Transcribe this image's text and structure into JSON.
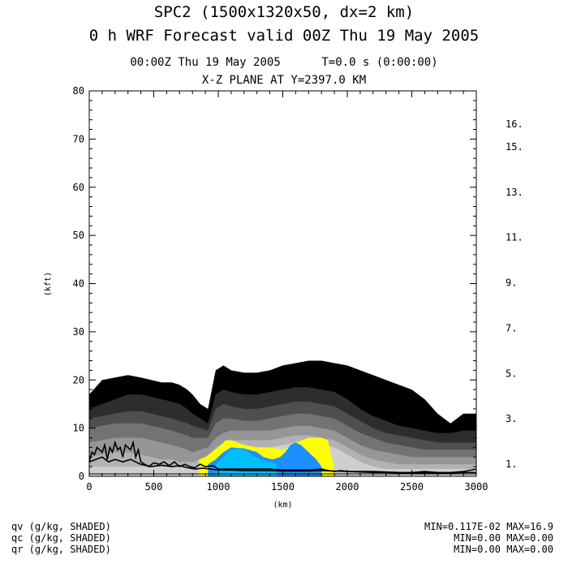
{
  "header": {
    "title_line1": "SPC2 (1500x1320x50, dx=2 km)",
    "title_line2": "0 h WRF Forecast valid 00Z Thu 19 May 2005",
    "time_line": "00:00Z Thu 19 May 2005      T=0.0 s (0:00:00)",
    "plane_line": "X-Z PLANE AT Y=2397.0 KM"
  },
  "chart_data": {
    "type": "area",
    "title": "X-Z PLANE AT Y=2397.0 KM",
    "xlabel": "(km)",
    "ylabel": "(kft)",
    "xlim": [
      0,
      3000
    ],
    "ylim": [
      0,
      80
    ],
    "xticks": [
      0,
      500,
      1000,
      1500,
      2000,
      2500,
      3000
    ],
    "yticks": [
      0,
      10,
      20,
      30,
      40,
      50,
      60,
      70,
      80
    ],
    "grid": false,
    "colorbar": {
      "tick_labels": [
        "1.",
        "3.",
        "5.",
        "7.",
        "9.",
        "11.",
        "13.",
        "15.",
        "16."
      ],
      "tick_values": [
        1,
        3,
        5,
        7,
        9,
        11,
        13,
        15,
        16
      ],
      "levels": [
        1,
        2,
        3,
        4,
        5,
        6,
        7,
        8,
        9,
        10,
        11,
        12,
        13,
        14,
        15,
        16
      ],
      "colors": [
        "#000000",
        "#2d2d2d",
        "#4f4f4f",
        "#737373",
        "#969696",
        "#b2b2b2",
        "#cfcfcf",
        "#ffff00",
        "#1e8fff",
        "#00bfff",
        "#00eeff",
        "#aaffff",
        "#1fbf1f",
        "#33dd33",
        "#7fff33",
        "#80e080"
      ]
    },
    "qv_layers": [
      {
        "level": 1,
        "color": "#000000",
        "x": [
          0,
          100,
          200,
          300,
          400,
          480,
          560,
          640,
          700,
          760,
          800,
          860,
          920,
          980,
          1040,
          1100,
          1200,
          1300,
          1400,
          1500,
          1600,
          1700,
          1800,
          1900,
          2000,
          2100,
          2200,
          2300,
          2400,
          2500,
          2600,
          2700,
          2800,
          2900,
          3000
        ],
        "y": [
          17,
          20,
          20.5,
          21,
          20.5,
          20,
          19.5,
          19.5,
          19,
          18,
          17,
          15,
          14,
          22,
          23,
          22,
          21.5,
          21.5,
          22,
          23,
          23.5,
          24,
          24,
          23.5,
          23,
          22,
          21,
          20,
          19,
          18,
          16,
          13,
          11,
          13,
          13
        ]
      },
      {
        "level": 2,
        "color": "#2d2d2d",
        "x": [
          0,
          100,
          200,
          300,
          400,
          480,
          560,
          640,
          700,
          760,
          800,
          860,
          920,
          980,
          1040,
          1100,
          1200,
          1300,
          1400,
          1500,
          1600,
          1700,
          1800,
          1900,
          2000,
          2100,
          2200,
          2300,
          2400,
          2500,
          2600,
          2700,
          2800,
          2900,
          3000
        ],
        "y": [
          14,
          15,
          16,
          17,
          17,
          16.5,
          16,
          15.5,
          15,
          14,
          13,
          12,
          11,
          17,
          18,
          17.5,
          17,
          17,
          17.5,
          18,
          18.5,
          18.5,
          18,
          17.5,
          16,
          14,
          12.5,
          11.5,
          10.5,
          10,
          9.5,
          9,
          9,
          9.5,
          9.5
        ]
      },
      {
        "level": 3,
        "color": "#4f4f4f",
        "x": [
          0,
          100,
          200,
          300,
          400,
          480,
          560,
          640,
          700,
          760,
          800,
          860,
          920,
          980,
          1040,
          1100,
          1200,
          1300,
          1400,
          1500,
          1600,
          1700,
          1800,
          1900,
          2000,
          2100,
          2200,
          2300,
          2400,
          2500,
          2600,
          2700,
          2800,
          2900,
          3000
        ],
        "y": [
          12,
          12.5,
          13,
          13.5,
          13.5,
          13,
          12.5,
          12,
          11.5,
          11,
          10.5,
          10,
          9.5,
          14,
          15,
          14.5,
          14,
          14,
          14.5,
          15,
          15.5,
          15.5,
          15,
          14.5,
          13,
          11.5,
          10,
          9,
          8.5,
          8,
          7.5,
          7,
          7,
          7,
          7
        ]
      },
      {
        "level": 4,
        "color": "#737373",
        "x": [
          0,
          100,
          200,
          300,
          400,
          480,
          560,
          640,
          700,
          760,
          800,
          860,
          920,
          980,
          1040,
          1100,
          1200,
          1300,
          1400,
          1500,
          1600,
          1700,
          1800,
          1900,
          2000,
          2100,
          2200,
          2300,
          2400,
          2500,
          2600,
          2700,
          2800,
          2900,
          3000
        ],
        "y": [
          10,
          10.5,
          11,
          11,
          11,
          10.5,
          10,
          9.5,
          9,
          8.5,
          8,
          8,
          8,
          11,
          12,
          12,
          11.5,
          11.5,
          12,
          12.5,
          13,
          13,
          12.5,
          12,
          10.5,
          9,
          8,
          7,
          6.5,
          6,
          5.5,
          5.5,
          5.5,
          5.5,
          5.5
        ]
      },
      {
        "level": 5,
        "color": "#969696",
        "x": [
          0,
          100,
          200,
          300,
          400,
          480,
          560,
          640,
          700,
          760,
          800,
          860,
          920,
          980,
          1040,
          1100,
          1200,
          1300,
          1400,
          1500,
          1600,
          1700,
          1800,
          1900,
          2000,
          2100,
          2200,
          2300,
          2400,
          2500,
          2600,
          2700,
          2800,
          2900,
          3000
        ],
        "y": [
          7,
          7.5,
          8,
          8,
          8,
          7.5,
          7,
          6.5,
          6,
          5.5,
          5,
          5.5,
          6,
          8,
          9,
          9.5,
          9.5,
          9.5,
          9.5,
          10,
          10.5,
          10.5,
          10,
          9.5,
          8,
          6.5,
          5.5,
          5,
          4.5,
          4,
          4,
          4,
          4,
          4,
          4
        ]
      },
      {
        "level": 6,
        "color": "#b2b2b2",
        "x": [
          0,
          100,
          200,
          300,
          400,
          480,
          560,
          640,
          700,
          760,
          800,
          860,
          920,
          980,
          1040,
          1100,
          1200,
          1300,
          1400,
          1500,
          1600,
          1700,
          1800,
          1900,
          2000,
          2100,
          2200,
          2300,
          2400,
          2500,
          2600,
          2700,
          2800,
          2900,
          3000
        ],
        "y": [
          4,
          4.5,
          5,
          5,
          4.5,
          4,
          3.5,
          3.5,
          3,
          3,
          3,
          3.5,
          4,
          6,
          7,
          7.5,
          7.5,
          7.5,
          7.5,
          8,
          8.5,
          8.5,
          8,
          7.5,
          6,
          4.5,
          3.5,
          3,
          2.5,
          2.5,
          2.5,
          2.5,
          2.5,
          2.5,
          2.5
        ]
      },
      {
        "level": 7,
        "color": "#cfcfcf",
        "x": [
          0,
          100,
          200,
          300,
          400,
          480,
          560,
          640,
          700,
          760,
          800,
          860,
          920,
          980,
          1040,
          1100,
          1200,
          1300,
          1400,
          1500,
          1600,
          1700,
          1800,
          1900,
          2000,
          2100,
          2200,
          2300,
          2400,
          2500,
          2600,
          2700,
          2800,
          2900,
          3000
        ],
        "y": [
          2,
          2,
          2,
          2,
          2,
          2,
          2,
          2,
          2,
          2,
          2,
          2.5,
          3,
          4.5,
          5.5,
          6,
          6,
          6,
          6,
          6.5,
          7,
          7,
          6.5,
          6,
          4.5,
          3,
          2,
          1.5,
          1.5,
          1.5,
          1.5,
          1.5,
          1.5,
          1.5,
          1.5
        ]
      }
    ],
    "qv_yellow": {
      "level": 8,
      "color": "#ffff00",
      "x": [
        850,
        900,
        1000,
        1060,
        1100,
        1200,
        1300,
        1400,
        1500,
        1550,
        1600,
        1700,
        1800,
        1850,
        1870,
        1900
      ],
      "y": [
        3.5,
        4,
        6,
        7.5,
        7.5,
        6.5,
        6,
        6,
        5.5,
        6,
        7,
        8,
        8,
        7.5,
        5,
        2
      ]
    },
    "qv_blue": [
      {
        "level": 9,
        "color": "#1e8fff",
        "x": [
          920,
          980,
          1040,
          1100,
          1200,
          1300,
          1350,
          1420,
          1480,
          1520,
          1560,
          1600,
          1640,
          1700,
          1760,
          1800
        ],
        "y": [
          2.5,
          3.5,
          5,
          6,
          5.8,
          5,
          4,
          3.5,
          4,
          5,
          6.5,
          7,
          6.5,
          5,
          3.5,
          2
        ]
      },
      {
        "level": 10,
        "color": "#00bfff",
        "x": [
          980,
          1040,
          1100,
          1150,
          1200,
          1260,
          1320,
          1400,
          1450
        ],
        "y": [
          2.5,
          4,
          5.5,
          5.8,
          5.5,
          4.5,
          3.5,
          3,
          2.5
        ]
      }
    ],
    "terrain": {
      "x": [
        0,
        200,
        400,
        500,
        600,
        700,
        800,
        900,
        1000,
        1200,
        1400,
        1600,
        1800,
        2000,
        2200,
        2400,
        2600,
        2800,
        3000
      ],
      "y": [
        0.5,
        0.5,
        0.5,
        0.5,
        0.5,
        0.5,
        0.5,
        0.5,
        0.5,
        0.5,
        0.5,
        0.5,
        0.5,
        0.5,
        0.5,
        0.5,
        0.5,
        0.5,
        0.5
      ]
    },
    "contour_lines": [
      {
        "x": [
          0,
          20,
          40,
          60,
          80,
          100,
          120,
          140,
          160,
          180,
          200,
          220,
          240,
          260,
          280,
          300,
          320,
          340,
          360,
          380,
          400,
          430,
          460,
          500,
          540,
          580,
          620,
          660,
          700,
          740,
          780,
          820,
          860,
          900,
          960,
          1000,
          1100,
          1200,
          1300,
          1400,
          1500,
          1600,
          1700,
          1800,
          1850,
          1900,
          1950,
          2000,
          2100,
          2200,
          2300,
          2400,
          2500,
          2600,
          2700,
          2800,
          2900,
          3000
        ],
        "y": [
          3,
          5,
          4.5,
          6,
          5.5,
          5,
          6.5,
          3.5,
          6,
          5,
          7,
          5.5,
          6,
          4,
          6.5,
          6,
          5.5,
          7,
          4,
          5.5,
          3,
          2.5,
          2,
          2.8,
          2.5,
          3,
          2.2,
          3,
          2,
          2.5,
          2,
          1.8,
          2.5,
          2,
          2.2,
          1.5,
          1.5,
          1.5,
          1.5,
          1.5,
          1.3,
          1.3,
          1.3,
          1.5,
          1.2,
          1,
          1.2,
          1,
          1,
          1,
          0.9,
          0.8,
          0.8,
          1,
          0.8,
          0.8,
          1,
          1.5
        ]
      },
      {
        "x": [
          0,
          50,
          100,
          150,
          200,
          260,
          320,
          400,
          480,
          560,
          640,
          700,
          760,
          820,
          880,
          940,
          1000,
          1100,
          1200,
          1300,
          1400,
          1500,
          1600,
          1700,
          1800,
          1900,
          2000,
          2100,
          2200,
          2300,
          2400,
          2500,
          2600,
          2700,
          2800,
          2900,
          3000
        ],
        "y": [
          3,
          3.5,
          4,
          3,
          3.5,
          3,
          3.5,
          2.5,
          2,
          2.3,
          2,
          2.2,
          1.8,
          1.5,
          1.7,
          1.5,
          1.3,
          1.3,
          1.2,
          1.2,
          1.2,
          1.1,
          1.1,
          1.1,
          1.2,
          1.1,
          1,
          0.9,
          0.8,
          0.8,
          0.7,
          0.7,
          0.7,
          0.7,
          0.7,
          0.8,
          0.8
        ]
      }
    ],
    "footer_left": [
      "qv (g/kg, SHADED)",
      "qc (g/kg, SHADED)",
      "qr (g/kg, SHADED)"
    ],
    "footer_right": [
      "MIN=0.117E-02 MAX=16.9",
      "MIN=0.00 MAX=0.00",
      "MIN=0.00 MAX=0.00"
    ]
  }
}
